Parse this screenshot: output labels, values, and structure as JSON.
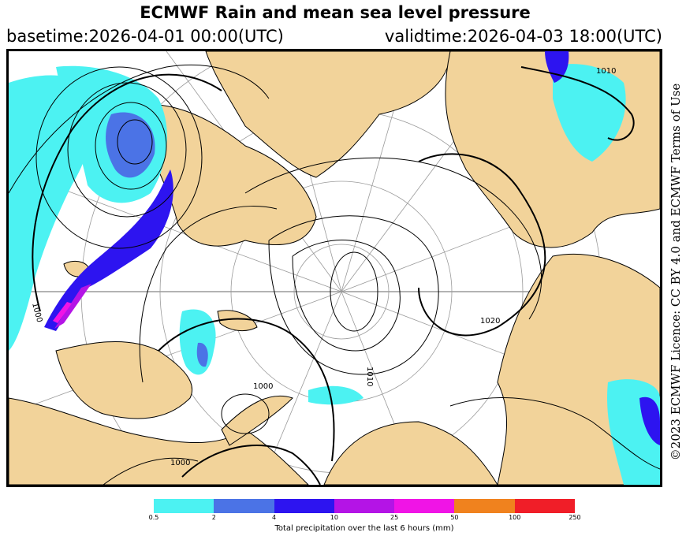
{
  "header": {
    "title": "ECMWF Rain and mean sea level pressure",
    "basetime": "basetime:2026-04-01 00:00(UTC)",
    "validtime": "validtime:2026-04-03 18:00(UTC)"
  },
  "map": {
    "isobar_labels": [
      "1010",
      "1000",
      "1020",
      "1000",
      "1010",
      "1000"
    ],
    "colors": {
      "land": "#f2d39a",
      "sea": "#ffffff",
      "isobar": "#000000",
      "grid": "#9a9a9a"
    }
  },
  "credit": "©2023 ECMWF Licence: CC BY 4.0 and ECMWF Terms of Use",
  "legend": {
    "label": "Total precipitation over the last 6 hours (mm)",
    "ticks": [
      "0.5",
      "2",
      "4",
      "10",
      "25",
      "50",
      "100",
      "250"
    ],
    "colors": [
      "#4cf2f2",
      "#4b73e6",
      "#2d14f0",
      "#b414e6",
      "#f014e6",
      "#f0821e",
      "#f01e28"
    ]
  }
}
